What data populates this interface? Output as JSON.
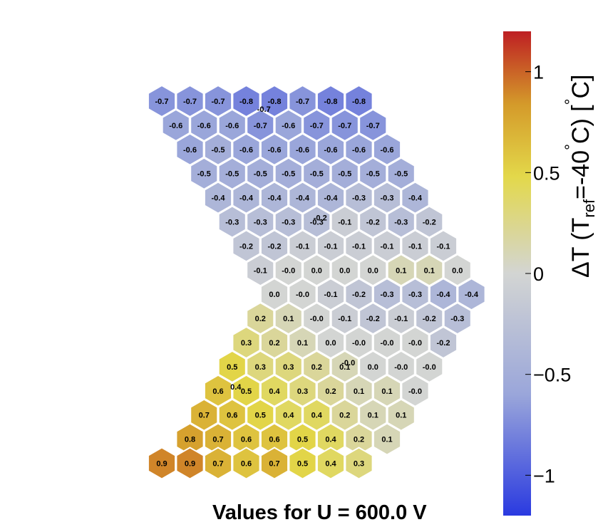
{
  "chart_data": {
    "type": "heatmap",
    "layout": "hexagonal-sensor",
    "caption": "Values for U = 600.0 V",
    "colorbar": {
      "title": "ΔT (T",
      "title_sub": "ref",
      "title_tail": "=-40",
      "degree_symbol": "°",
      "title_end": "C) [",
      "unit_end": "C]",
      "range": [
        -1.2,
        1.2
      ],
      "ticks": [
        {
          "value": 1,
          "label": "1"
        },
        {
          "value": 0.5,
          "label": "0.5"
        },
        {
          "value": 0,
          "label": "0"
        },
        {
          "value": -0.5,
          "label": "−0.5"
        },
        {
          "value": -1,
          "label": "−1"
        }
      ],
      "colors": {
        "low": "#2a3ae0",
        "mid": "#d3d5d3",
        "high_mid": "#e3d84a",
        "high": "#be1f23"
      }
    },
    "rows": [
      {
        "start": 0,
        "values": [
          -0.7,
          -0.7,
          -0.7,
          -0.8,
          -0.8,
          -0.7,
          -0.8,
          -0.8
        ]
      },
      {
        "start": 0.5,
        "values": [
          -0.6,
          -0.6,
          -0.6,
          -0.7,
          -0.6,
          -0.7,
          -0.7,
          -0.7
        ]
      },
      {
        "start": 1,
        "values": [
          -0.6,
          -0.5,
          -0.6,
          -0.6,
          -0.6,
          -0.6,
          -0.6,
          -0.6
        ]
      },
      {
        "start": 1.5,
        "values": [
          -0.5,
          -0.5,
          -0.5,
          -0.5,
          -0.5,
          -0.5,
          -0.5,
          -0.5
        ]
      },
      {
        "start": 2,
        "values": [
          -0.4,
          -0.4,
          -0.4,
          -0.4,
          -0.4,
          -0.3,
          -0.3,
          -0.4
        ]
      },
      {
        "start": 2.5,
        "values": [
          -0.3,
          -0.3,
          -0.3,
          -0.3,
          -0.1,
          -0.2,
          -0.3,
          -0.2
        ]
      },
      {
        "start": 3,
        "values": [
          -0.2,
          -0.2,
          -0.1,
          -0.1,
          -0.1,
          -0.1,
          -0.1,
          -0.1
        ]
      },
      {
        "start": 3.5,
        "values": [
          -0.1,
          -0.0,
          0.0,
          0.0,
          0.0,
          0.1,
          0.1,
          0.0
        ]
      },
      {
        "start": 4,
        "values": [
          0.0,
          -0.0,
          -0.1,
          -0.2,
          -0.3,
          -0.3,
          -0.4,
          -0.4
        ]
      },
      {
        "start": 3.5,
        "values": [
          0.2,
          0.1,
          -0.0,
          -0.1,
          -0.2,
          -0.1,
          -0.2,
          -0.3
        ]
      },
      {
        "start": 3,
        "values": [
          0.3,
          0.2,
          0.1,
          0.0,
          -0.0,
          -0.0,
          -0.0,
          -0.2
        ]
      },
      {
        "start": 2.5,
        "values": [
          0.5,
          0.3,
          0.3,
          0.2,
          0.1,
          0.0,
          -0.0,
          -0.0
        ]
      },
      {
        "start": 2,
        "values": [
          0.6,
          0.5,
          0.4,
          0.3,
          0.2,
          0.1,
          0.1,
          -0.0
        ]
      },
      {
        "start": 1.5,
        "values": [
          0.7,
          0.6,
          0.5,
          0.4,
          0.4,
          0.2,
          0.1,
          0.1
        ]
      },
      {
        "start": 1,
        "values": [
          0.8,
          0.7,
          0.6,
          0.6,
          0.5,
          0.4,
          0.2,
          0.1
        ]
      },
      {
        "start": 0,
        "values": [
          0.9,
          0.9,
          0.7,
          0.6,
          0.7,
          0.5,
          0.4,
          0.3
        ]
      }
    ],
    "extra_labels": [
      {
        "row": 0,
        "col": 3.5,
        "value": -0.7
      },
      {
        "row": 4.5,
        "col": 5.5,
        "value": -0.2
      },
      {
        "row": 10.5,
        "col": 6.5,
        "value": -0.0
      },
      {
        "row": 11.5,
        "col": 2.5,
        "value": 0.4
      }
    ]
  }
}
